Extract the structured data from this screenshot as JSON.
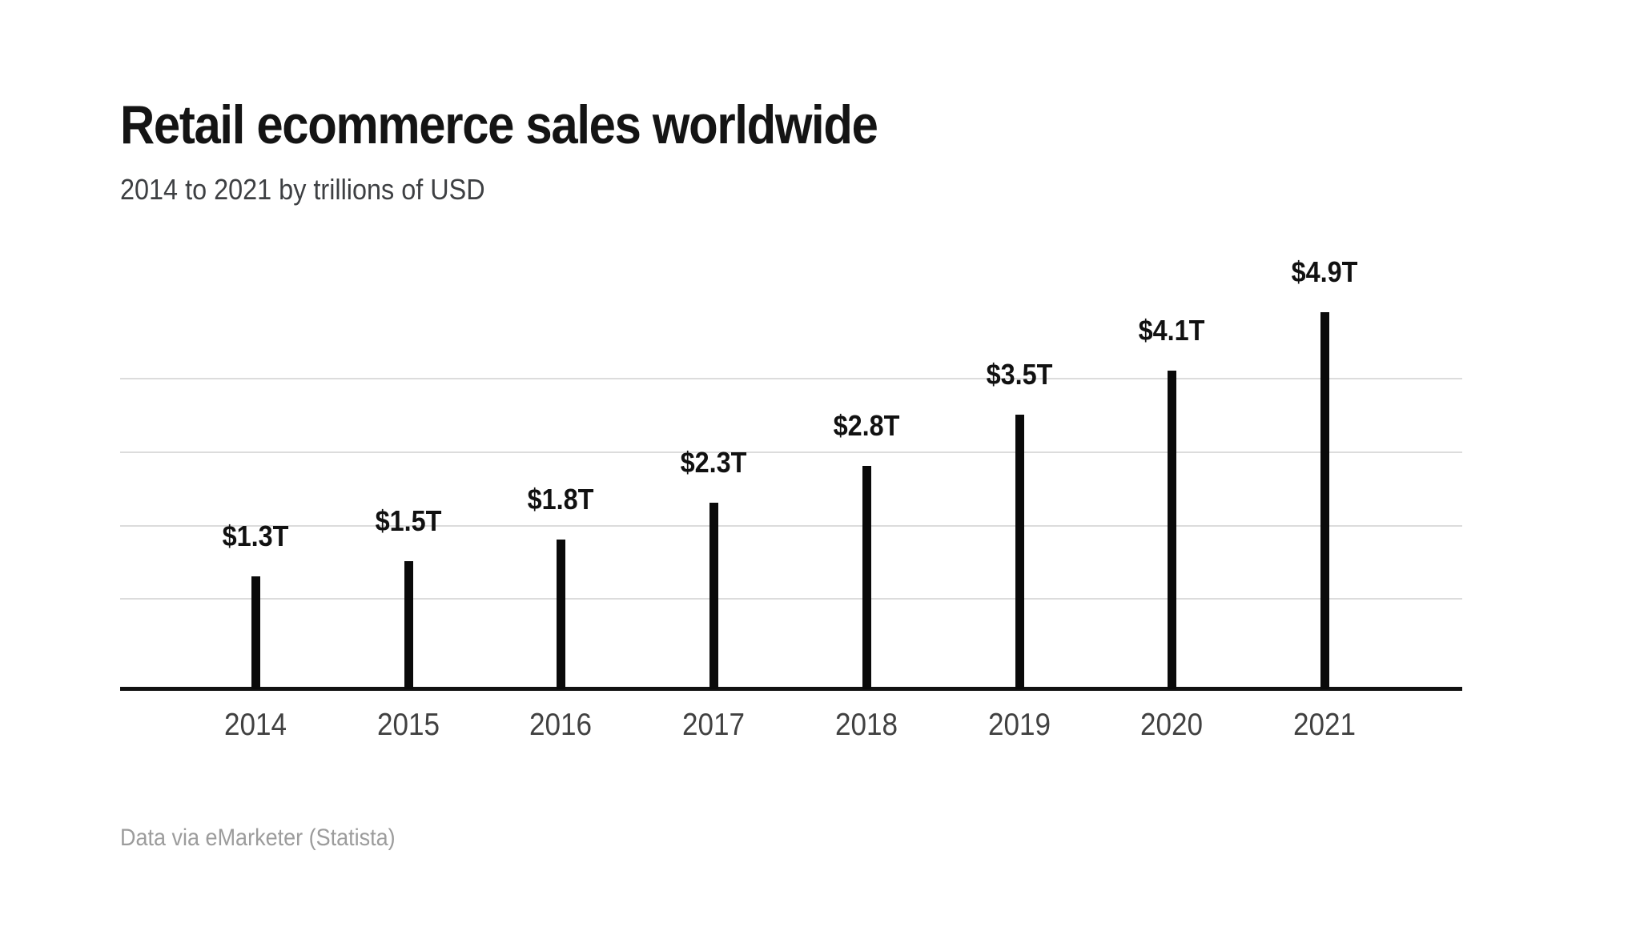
{
  "header": {
    "title": "Retail ecommerce sales worldwide",
    "subtitle": "2014 to 2021 by trillions of USD"
  },
  "footer": {
    "source": "Data via eMarketer (Statista)"
  },
  "colors": {
    "background": "#ffffff",
    "title": "#141414",
    "subtitle": "#3e4043",
    "bar": "#0a0a0a",
    "axis": "#111111",
    "gridline": "#dcdcdc",
    "tick_label": "#414141",
    "source": "#9c9c9c"
  },
  "chart_data": {
    "type": "bar",
    "title": "Retail ecommerce sales worldwide",
    "subtitle": "2014 to 2021 by trillions of USD",
    "categories": [
      "2014",
      "2015",
      "2016",
      "2017",
      "2018",
      "2019",
      "2020",
      "2021"
    ],
    "values": [
      1.3,
      1.5,
      1.8,
      2.3,
      2.8,
      3.5,
      4.1,
      4.9
    ],
    "value_labels": [
      "$1.3T",
      "$1.5T",
      "$1.8T",
      "$2.3T",
      "$2.8T",
      "$3.5T",
      "$4.1T",
      "$4.9T"
    ],
    "unit": "trillions of USD",
    "xlabel": "",
    "ylabel": "",
    "ylim": [
      0,
      5.2
    ],
    "gridline_values": [
      1,
      2,
      3,
      4
    ],
    "grid": "horizontal-only",
    "legend": "none",
    "bar_style": "thin-vertical",
    "source": "Data via eMarketer (Statista)"
  }
}
